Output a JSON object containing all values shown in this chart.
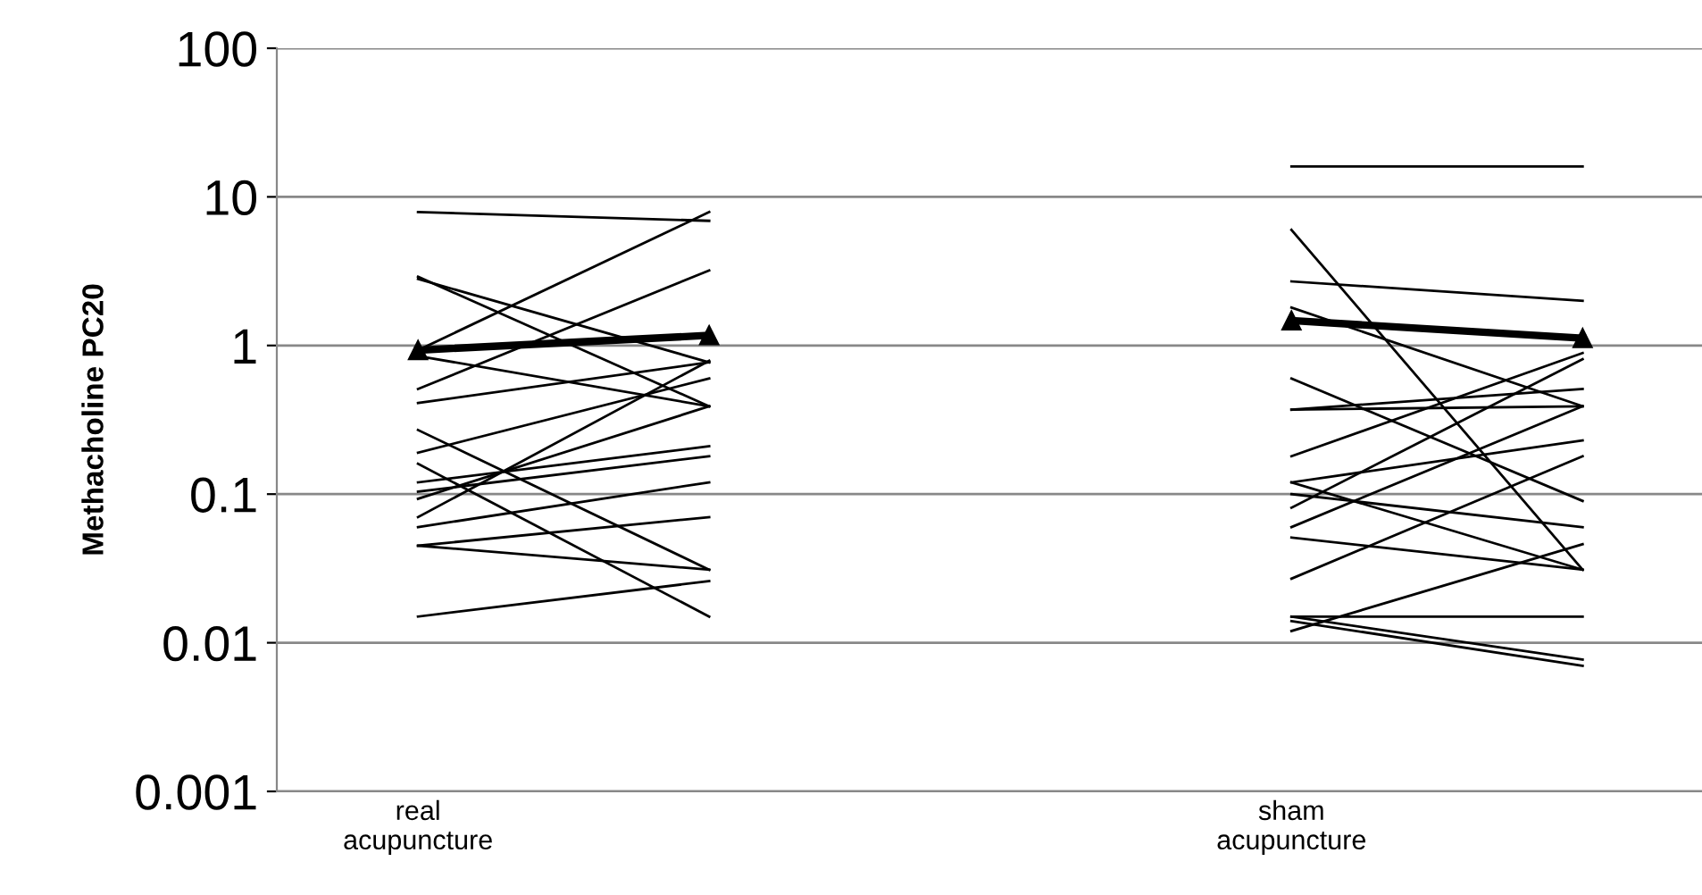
{
  "chart_data": {
    "type": "line",
    "ylabel": "Methacholine PC20",
    "log": true,
    "categories": [
      "real\nacupuncture",
      null,
      null,
      "sham\nacupuncture",
      null
    ],
    "ylim": [
      0.001,
      100
    ],
    "yticks": [
      0.001,
      0.01,
      0.1,
      1,
      10,
      100
    ],
    "grid": "y",
    "line_style": "solid",
    "series": [
      {
        "color": "#000000",
        "values": [
          7.9,
          6.9,
          null,
          null,
          null
        ]
      },
      {
        "color": "#000000",
        "values": [
          0.93,
          7.9,
          null,
          null,
          null
        ]
      },
      {
        "color": "#000000",
        "values": [
          2.9,
          0.39,
          null,
          null,
          null
        ]
      },
      {
        "color": "#000000",
        "values": [
          2.8,
          0.77,
          null,
          null,
          null
        ]
      },
      {
        "color": "#000000",
        "values": [
          0.85,
          0.39,
          null,
          null,
          null
        ]
      },
      {
        "color": "#000000",
        "values": [
          0.51,
          3.2,
          null,
          null,
          null
        ]
      },
      {
        "color": "#000000",
        "values": [
          0.41,
          0.77,
          null,
          null,
          null
        ]
      },
      {
        "color": "#000000",
        "values": [
          0.27,
          0.031,
          null,
          null,
          null
        ]
      },
      {
        "color": "#000000",
        "values": [
          0.19,
          0.6,
          null,
          null,
          null
        ]
      },
      {
        "color": "#000000",
        "values": [
          0.16,
          0.015,
          null,
          null,
          null
        ]
      },
      {
        "color": "#000000",
        "values": [
          0.12,
          0.21,
          null,
          null,
          null
        ]
      },
      {
        "color": "#000000",
        "values": [
          0.104,
          0.18,
          null,
          null,
          null
        ]
      },
      {
        "color": "#000000",
        "values": [
          0.093,
          0.39,
          null,
          null,
          null
        ]
      },
      {
        "color": "#000000",
        "values": [
          0.07,
          0.79,
          null,
          null,
          null
        ]
      },
      {
        "color": "#000000",
        "values": [
          0.06,
          0.12,
          null,
          null,
          null
        ]
      },
      {
        "color": "#000000",
        "values": [
          0.045,
          0.07,
          null,
          null,
          null
        ]
      },
      {
        "color": "#000000",
        "values": [
          0.045,
          0.031,
          null,
          null,
          null
        ]
      },
      {
        "color": "#000000",
        "values": [
          0.015,
          0.026,
          null,
          null,
          null
        ]
      },
      {
        "color": "#000000",
        "values": [
          null,
          null,
          null,
          16,
          16
        ]
      },
      {
        "color": "#000000",
        "values": [
          null,
          null,
          null,
          6.0,
          0.031
        ]
      },
      {
        "color": "#000000",
        "values": [
          null,
          null,
          null,
          2.7,
          2.0
        ]
      },
      {
        "color": "#000000",
        "values": [
          null,
          null,
          null,
          1.8,
          0.39
        ]
      },
      {
        "color": "#000000",
        "values": [
          null,
          null,
          null,
          0.6,
          0.09
        ]
      },
      {
        "color": "#000000",
        "values": [
          null,
          null,
          null,
          0.37,
          0.39
        ]
      },
      {
        "color": "#000000",
        "values": [
          null,
          null,
          null,
          0.37,
          0.51
        ]
      },
      {
        "color": "#000000",
        "values": [
          null,
          null,
          null,
          0.18,
          0.89
        ]
      },
      {
        "color": "#000000",
        "values": [
          null,
          null,
          null,
          0.12,
          0.23
        ]
      },
      {
        "color": "#000000",
        "values": [
          null,
          null,
          null,
          0.12,
          0.031
        ]
      },
      {
        "color": "#000000",
        "values": [
          null,
          null,
          null,
          0.1,
          0.06
        ]
      },
      {
        "color": "#000000",
        "values": [
          null,
          null,
          null,
          0.081,
          0.81
        ]
      },
      {
        "color": "#000000",
        "values": [
          null,
          null,
          null,
          0.06,
          0.39
        ]
      },
      {
        "color": "#000000",
        "values": [
          null,
          null,
          null,
          0.051,
          0.031
        ]
      },
      {
        "color": "#000000",
        "values": [
          null,
          null,
          null,
          0.027,
          0.18
        ]
      },
      {
        "color": "#000000",
        "values": [
          null,
          null,
          null,
          0.015,
          0.015
        ]
      },
      {
        "color": "#000000",
        "values": [
          null,
          null,
          null,
          0.015,
          0.0077
        ]
      },
      {
        "color": "#000000",
        "values": [
          null,
          null,
          null,
          0.014,
          0.007
        ]
      },
      {
        "color": "#000000",
        "values": [
          null,
          null,
          null,
          0.012,
          0.046
        ]
      },
      {
        "color": "#000000",
        "marker": "triangle",
        "values": [
          0.93,
          1.17,
          null,
          1.47,
          1.12
        ]
      }
    ]
  }
}
